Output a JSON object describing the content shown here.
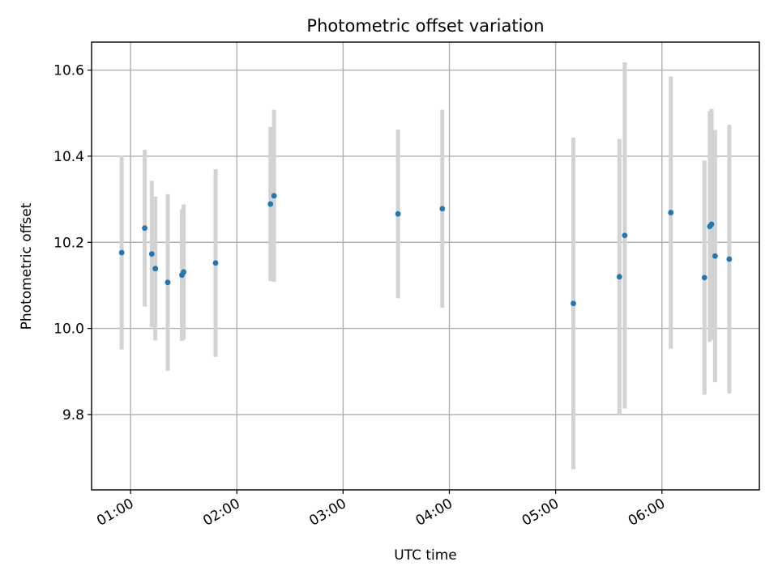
{
  "chart_data": {
    "type": "scatter",
    "title": "Photometric offset variation",
    "xlabel": "UTC time",
    "ylabel": "Photometric offset",
    "x_tick_labels": [
      "01:00",
      "02:00",
      "03:00",
      "04:00",
      "05:00",
      "06:00"
    ],
    "y_tick_labels": [
      "9.8",
      "10.0",
      "10.2",
      "10.4",
      "10.6"
    ],
    "xlim": [
      "00:38",
      "06:55"
    ],
    "ylim": [
      9.625,
      10.665
    ],
    "grid": true,
    "colors": {
      "point": "#1f77b4",
      "errorbar": "#d3d3d3"
    },
    "series": [
      {
        "points": [
          {
            "x": "00:55",
            "y": 10.176,
            "err": 0.225
          },
          {
            "x": "01:08",
            "y": 10.233,
            "err": 0.182
          },
          {
            "x": "01:12",
            "y": 10.173,
            "err": 0.17
          },
          {
            "x": "01:14",
            "y": 10.139,
            "err": 0.167
          },
          {
            "x": "01:21",
            "y": 10.107,
            "err": 0.205
          },
          {
            "x": "01:29",
            "y": 10.124,
            "err": 0.153
          },
          {
            "x": "01:30",
            "y": 10.131,
            "err": 0.157
          },
          {
            "x": "01:48",
            "y": 10.152,
            "err": 0.218
          },
          {
            "x": "02:19",
            "y": 10.289,
            "err": 0.179
          },
          {
            "x": "02:21",
            "y": 10.308,
            "err": 0.2
          },
          {
            "x": "03:31",
            "y": 10.266,
            "err": 0.196
          },
          {
            "x": "03:56",
            "y": 10.278,
            "err": 0.23
          },
          {
            "x": "05:10",
            "y": 10.058,
            "err": 0.385
          },
          {
            "x": "05:36",
            "y": 10.12,
            "err": 0.32
          },
          {
            "x": "05:39",
            "y": 10.216,
            "err": 0.402
          },
          {
            "x": "06:05",
            "y": 10.269,
            "err": 0.316
          },
          {
            "x": "06:24",
            "y": 10.118,
            "err": 0.272
          },
          {
            "x": "06:27",
            "y": 10.237,
            "err": 0.268
          },
          {
            "x": "06:28",
            "y": 10.242,
            "err": 0.268
          },
          {
            "x": "06:30",
            "y": 10.168,
            "err": 0.293
          },
          {
            "x": "06:38",
            "y": 10.161,
            "err": 0.312
          }
        ]
      }
    ]
  }
}
